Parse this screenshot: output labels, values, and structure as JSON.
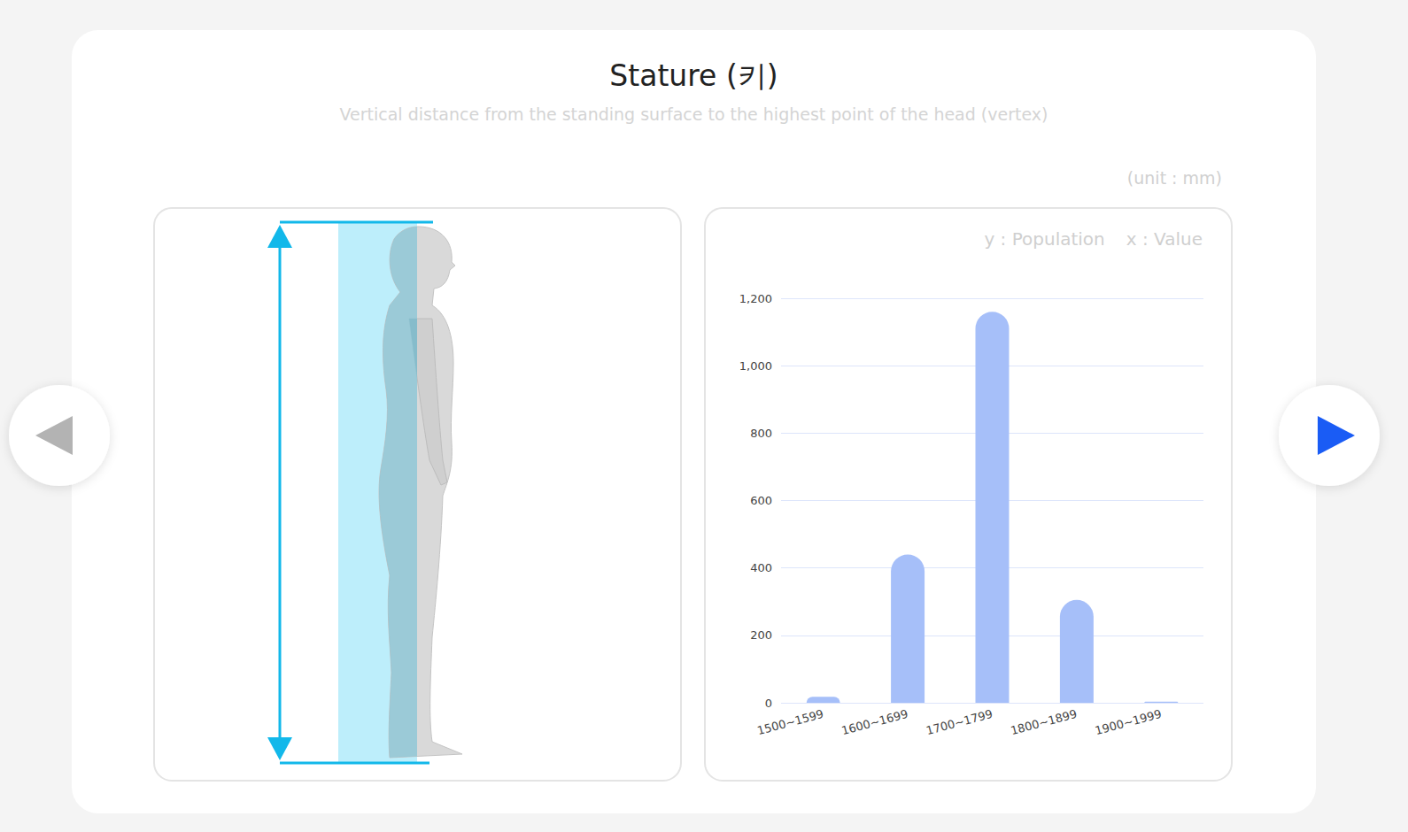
{
  "chart_data": {
    "type": "bar",
    "title": "Stature (키)",
    "subtitle": "Vertical distance from the standing surface to the highest point of the head (vertex)",
    "annotations": [
      "(unit : mm)"
    ],
    "y_label": "y : Population",
    "x_label": "x : Value",
    "categories": [
      "1500~1599",
      "1600~1699",
      "1700~1799",
      "1800~1899",
      "1900~1999"
    ],
    "values": [
      18,
      440,
      1160,
      305,
      3
    ],
    "color": "#a6bff9",
    "ylim": [
      0,
      1200
    ],
    "yticks": [
      0,
      200,
      400,
      600,
      800,
      {
        "value": 1000,
        "label": "1,000"
      },
      {
        "value": 1200,
        "label": "1,200"
      }
    ],
    "grid": true
  }
}
